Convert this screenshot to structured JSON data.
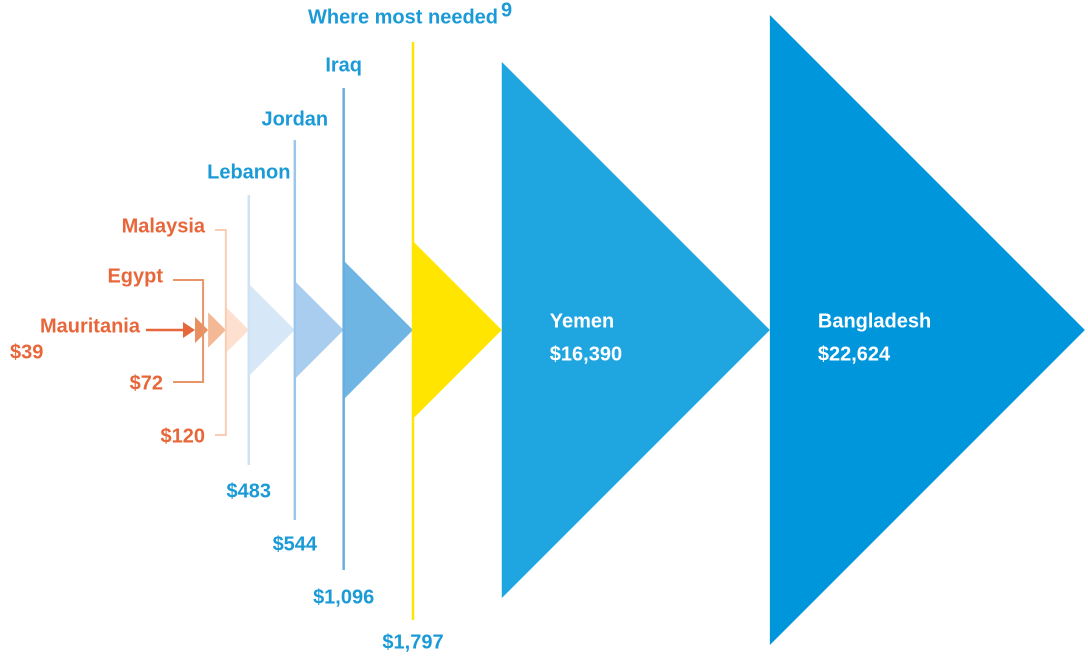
{
  "chart_data": {
    "type": "triangle",
    "categories": [
      "Mauritania",
      "Egypt",
      "Malaysia",
      "Lebanon",
      "Jordan",
      "Iraq",
      "Where most needed",
      "Yemen",
      "Bangladesh"
    ],
    "footnote_mark": "9",
    "values": [
      39,
      72,
      120,
      483,
      544,
      1096,
      1797,
      16390,
      22624
    ],
    "value_labels": [
      "$39",
      "$72",
      "$120",
      "$483",
      "$544",
      "$1,096",
      "$1,797",
      "$16,390",
      "$22,624"
    ],
    "colors": [
      "#e8905f",
      "#f3b996",
      "#fde0cf",
      "#d6e8f7",
      "#a9cdee",
      "#6fb5e4",
      "#ffe500",
      "#1fa6e0",
      "#0096dc"
    ],
    "label_colors": [
      "#e8673a",
      "#e8673a",
      "#e8673a",
      "#1a9ad6",
      "#1a9ad6",
      "#1a9ad6",
      "#1a9ad6",
      "#ffffff",
      "#ffffff"
    ]
  }
}
